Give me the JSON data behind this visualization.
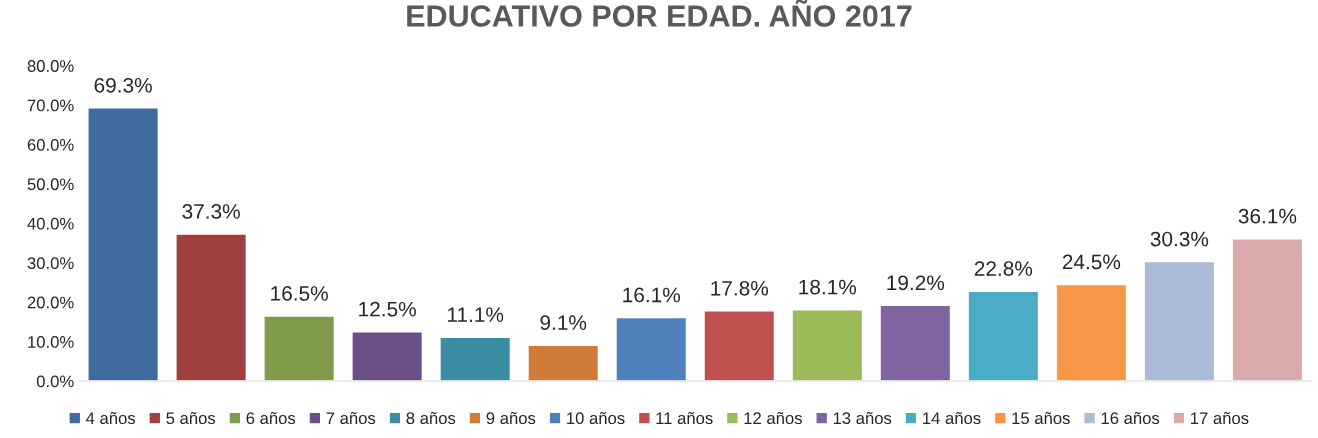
{
  "chart_data": {
    "type": "bar",
    "title": "EDUCATIVO POR EDAD. AÑO 2017",
    "categories": [
      null
    ],
    "series": [
      {
        "name": "4 años",
        "color": "#3f6b9e",
        "values": [
          69.3
        ],
        "value_labels": [
          "69.3%"
        ]
      },
      {
        "name": "5 años",
        "color": "#a0403e",
        "values": [
          37.3
        ],
        "value_labels": [
          "37.3%"
        ]
      },
      {
        "name": "6 años",
        "color": "#7f9a48",
        "values": [
          16.5
        ],
        "value_labels": [
          "16.5%"
        ]
      },
      {
        "name": "7 años",
        "color": "#6a4f88",
        "values": [
          12.5
        ],
        "value_labels": [
          "12.5%"
        ]
      },
      {
        "name": "8 años",
        "color": "#3a8da3",
        "values": [
          11.1
        ],
        "value_labels": [
          "11.1%"
        ]
      },
      {
        "name": "9 años",
        "color": "#d07c38",
        "values": [
          9.1
        ],
        "value_labels": [
          "9.1%"
        ]
      },
      {
        "name": "10 años",
        "color": "#4f81bd",
        "values": [
          16.1
        ],
        "value_labels": [
          "16.1%"
        ]
      },
      {
        "name": "11 años",
        "color": "#c0504d",
        "values": [
          17.8
        ],
        "value_labels": [
          "17.8%"
        ]
      },
      {
        "name": "12 años",
        "color": "#9bbb59",
        "values": [
          18.1
        ],
        "value_labels": [
          "18.1%"
        ]
      },
      {
        "name": "13 años",
        "color": "#8064a2",
        "values": [
          19.2
        ],
        "value_labels": [
          "19.2%"
        ]
      },
      {
        "name": "14 años",
        "color": "#4bacc6",
        "values": [
          22.8
        ],
        "value_labels": [
          "22.8%"
        ]
      },
      {
        "name": "15 años",
        "color": "#f79646",
        "values": [
          24.5
        ],
        "value_labels": [
          "24.5%"
        ]
      },
      {
        "name": "16 años",
        "color": "#aabad7",
        "values": [
          30.3
        ],
        "value_labels": [
          "30.3%"
        ]
      },
      {
        "name": "17 años",
        "color": "#d9aaa9",
        "values": [
          36.1
        ],
        "value_labels": [
          "36.1%"
        ]
      }
    ],
    "ylim": [
      0,
      80
    ],
    "yticks": [
      {
        "value": 0,
        "label": "0.0%"
      },
      {
        "value": 10,
        "label": "10.0%"
      },
      {
        "value": 20,
        "label": "20.0%"
      },
      {
        "value": 30,
        "label": "30.0%"
      },
      {
        "value": 40,
        "label": "40.0%"
      },
      {
        "value": 50,
        "label": "50.0%"
      },
      {
        "value": 60,
        "label": "60.0%"
      },
      {
        "value": 70,
        "label": "70.0%"
      },
      {
        "value": 80,
        "label": "80.0%"
      }
    ],
    "tick_labels": "y",
    "legend": "bottom",
    "grid": false
  }
}
